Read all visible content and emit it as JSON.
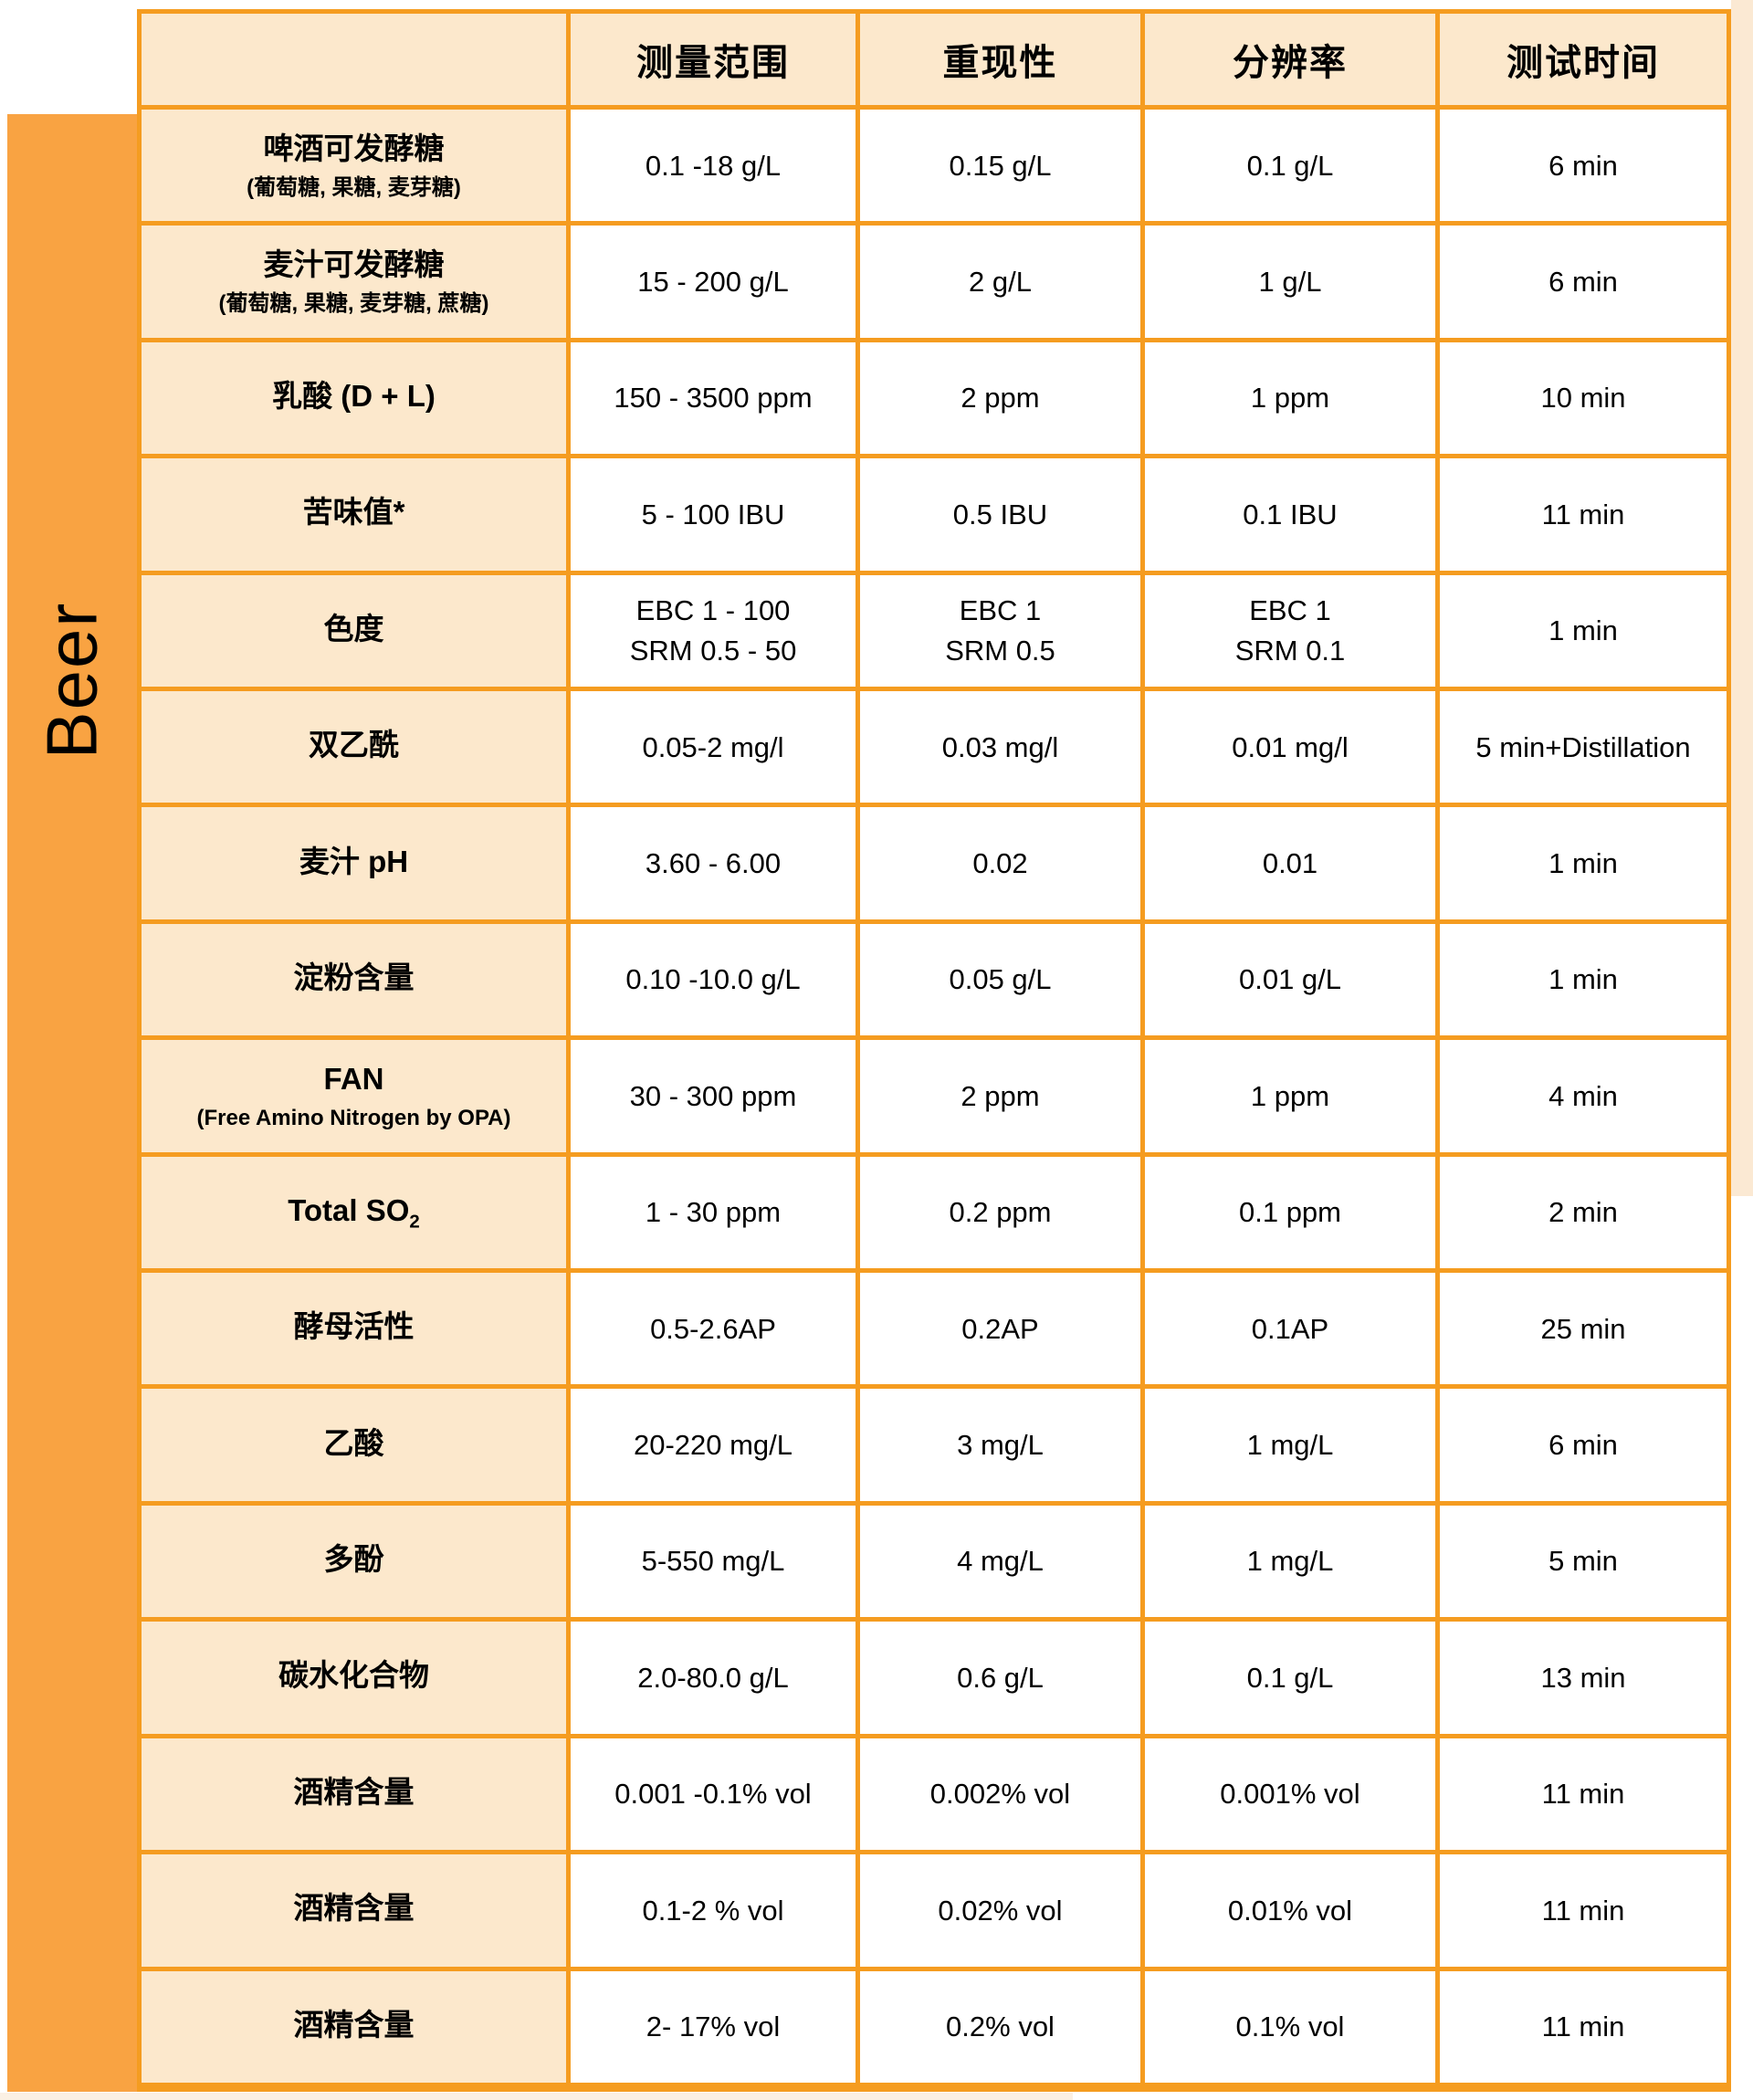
{
  "group_label": "Beer",
  "colors": {
    "grid_orange": "#F59C20",
    "band_orange": "#F9A342",
    "cell_peach": "#FCE8CC",
    "value_background": "#FFFFFF",
    "right_margin_peach": "#FBE9D3",
    "bottom_margin_peach": "#FBF0E3",
    "text": "#000000"
  },
  "table": {
    "corner": "",
    "columns": [
      "测量范围",
      "重现性",
      "分辨率",
      "测试时间"
    ],
    "rows": [
      {
        "label": "啤酒可发酵糖",
        "label_subscript": "",
        "sublabel": "(葡萄糖, 果糖, 麦芽糖)",
        "range": "0.1 -18 g/L",
        "reproducibility": "0.15 g/L",
        "resolution": "0.1 g/L",
        "time": "6 min"
      },
      {
        "label": "麦汁可发酵糖",
        "label_subscript": "",
        "sublabel": "(葡萄糖, 果糖, 麦芽糖, 蔗糖)",
        "range": "15 - 200 g/L",
        "reproducibility": "2 g/L",
        "resolution": "1 g/L",
        "time": "6 min"
      },
      {
        "label": "乳酸 (D + L)",
        "label_subscript": "",
        "sublabel": "",
        "range": "150 - 3500 ppm",
        "reproducibility": "2 ppm",
        "resolution": "1 ppm",
        "time": "10 min"
      },
      {
        "label": "苦味值*",
        "label_subscript": "",
        "sublabel": "",
        "range": "5 - 100 IBU",
        "reproducibility": "0.5 IBU",
        "resolution": "0.1 IBU",
        "time": "11 min"
      },
      {
        "label": "色度",
        "label_subscript": "",
        "sublabel": "",
        "range": "EBC 1 - 100\nSRM 0.5 - 50",
        "reproducibility": "EBC 1\nSRM 0.5",
        "resolution": "EBC 1\nSRM 0.1",
        "time": "1 min"
      },
      {
        "label": "双乙酰",
        "label_subscript": "",
        "sublabel": "",
        "range": "0.05-2 mg/l",
        "reproducibility": "0.03 mg/l",
        "resolution": "0.01 mg/l",
        "time": "5 min+Distillation"
      },
      {
        "label": "麦汁 pH",
        "label_subscript": "",
        "sublabel": "",
        "range": "3.60 - 6.00",
        "reproducibility": "0.02",
        "resolution": "0.01",
        "time": "1 min"
      },
      {
        "label": "淀粉含量",
        "label_subscript": "",
        "sublabel": "",
        "range": "0.10 -10.0 g/L",
        "reproducibility": "0.05 g/L",
        "resolution": "0.01 g/L",
        "time": "1 min"
      },
      {
        "label": "FAN",
        "label_subscript": "",
        "sublabel": "(Free Amino Nitrogen by OPA)",
        "range": "30 - 300 ppm",
        "reproducibility": "2 ppm",
        "resolution": "1 ppm",
        "time": "4 min"
      },
      {
        "label": "Total SO",
        "label_subscript": "2",
        "sublabel": "",
        "range": "1 - 30 ppm",
        "reproducibility": "0.2 ppm",
        "resolution": "0.1 ppm",
        "time": "2 min"
      },
      {
        "label": "酵母活性",
        "label_subscript": "",
        "sublabel": "",
        "range": "0.5-2.6AP",
        "reproducibility": "0.2AP",
        "resolution": "0.1AP",
        "time": "25 min"
      },
      {
        "label": "乙酸",
        "label_subscript": "",
        "sublabel": "",
        "range": "20-220 mg/L",
        "reproducibility": "3 mg/L",
        "resolution": "1 mg/L",
        "time": "6 min"
      },
      {
        "label": "多酚",
        "label_subscript": "",
        "sublabel": "",
        "range": "5-550 mg/L",
        "reproducibility": "4 mg/L",
        "resolution": "1 mg/L",
        "time": "5 min"
      },
      {
        "label": "碳水化合物",
        "label_subscript": "",
        "sublabel": "",
        "range": "2.0-80.0 g/L",
        "reproducibility": "0.6 g/L",
        "resolution": "0.1 g/L",
        "time": "13 min"
      },
      {
        "label": "酒精含量",
        "label_subscript": "",
        "sublabel": "",
        "range": "0.001 -0.1% vol",
        "reproducibility": "0.002% vol",
        "resolution": "0.001% vol",
        "time": "11 min"
      },
      {
        "label": "酒精含量",
        "label_subscript": "",
        "sublabel": "",
        "range": "0.1-2 % vol",
        "reproducibility": "0.02% vol",
        "resolution": "0.01% vol",
        "time": "11 min"
      },
      {
        "label": "酒精含量",
        "label_subscript": "",
        "sublabel": "",
        "range": "2- 17% vol",
        "reproducibility": "0.2% vol",
        "resolution": "0.1% vol",
        "time": "11 min"
      }
    ]
  }
}
